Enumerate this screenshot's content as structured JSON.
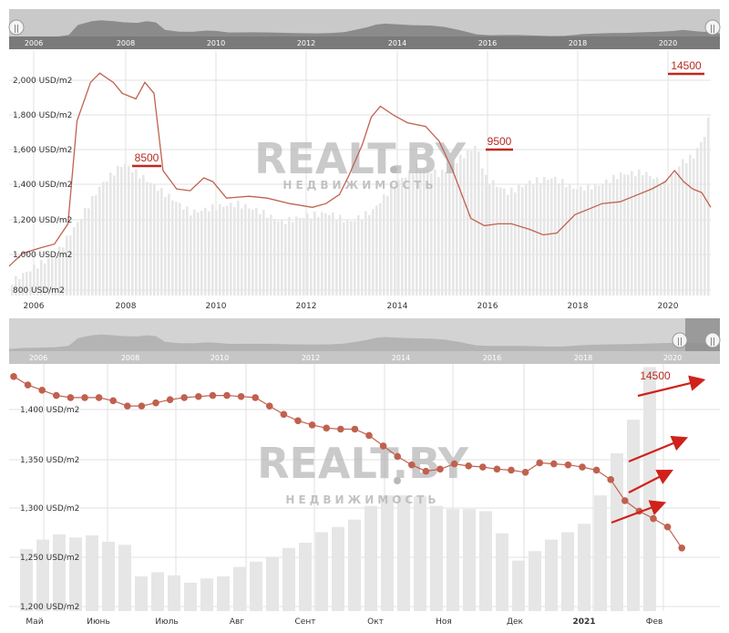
{
  "charts": [
    {
      "id": "top",
      "navigator": {
        "labels": [
          "2006",
          "2008",
          "2010",
          "2012",
          "2014",
          "2016",
          "2018",
          "2020"
        ],
        "handle_glyph": "||"
      },
      "chart_data": {
        "type": "line",
        "y_unit": "USD/m2",
        "y_ticks": [
          "2,000 USD/m2",
          "1,800 USD/m2",
          "1,600 USD/m2",
          "1,400 USD/m2",
          "1,200 USD/m2",
          "1,000 USD/m2",
          "800 USD/m2"
        ],
        "ylim": [
          800,
          2130
        ],
        "x_ticks": [
          "2006",
          "2008",
          "2010",
          "2012",
          "2014",
          "2016",
          "2018",
          "2020"
        ],
        "xlim": [
          2005.5,
          2021
        ],
        "grid": true,
        "watermark": {
          "main": "REALT.BY",
          "sub": "НЕДВИЖИМОСТЬ"
        },
        "series": [
          {
            "kind": "line",
            "color": "#c0614f",
            "points": [
              [
                2005.5,
                960
              ],
              [
                2005.8,
                1030
              ],
              [
                2006.2,
                1060
              ],
              [
                2006.5,
                1080
              ],
              [
                2006.8,
                1190
              ],
              [
                2007.0,
                1750
              ],
              [
                2007.3,
                1960
              ],
              [
                2007.5,
                2010
              ],
              [
                2007.8,
                1960
              ],
              [
                2008.0,
                1900
              ],
              [
                2008.3,
                1870
              ],
              [
                2008.5,
                1960
              ],
              [
                2008.7,
                1900
              ],
              [
                2008.9,
                1480
              ],
              [
                2009.2,
                1380
              ],
              [
                2009.5,
                1370
              ],
              [
                2009.8,
                1440
              ],
              [
                2010.0,
                1420
              ],
              [
                2010.3,
                1330
              ],
              [
                2010.8,
                1340
              ],
              [
                2011.2,
                1330
              ],
              [
                2011.7,
                1300
              ],
              [
                2012.2,
                1280
              ],
              [
                2012.5,
                1300
              ],
              [
                2012.8,
                1350
              ],
              [
                2013.0,
                1450
              ],
              [
                2013.3,
                1620
              ],
              [
                2013.5,
                1770
              ],
              [
                2013.7,
                1830
              ],
              [
                2014.0,
                1780
              ],
              [
                2014.3,
                1740
              ],
              [
                2014.7,
                1720
              ],
              [
                2015.0,
                1640
              ],
              [
                2015.3,
                1480
              ],
              [
                2015.7,
                1220
              ],
              [
                2016.0,
                1180
              ],
              [
                2016.3,
                1190
              ],
              [
                2016.6,
                1190
              ],
              [
                2017.0,
                1160
              ],
              [
                2017.3,
                1130
              ],
              [
                2017.6,
                1140
              ],
              [
                2018.0,
                1240
              ],
              [
                2018.3,
                1270
              ],
              [
                2018.6,
                1300
              ],
              [
                2019.0,
                1310
              ],
              [
                2019.3,
                1340
              ],
              [
                2019.7,
                1380
              ],
              [
                2020.0,
                1420
              ],
              [
                2020.2,
                1480
              ],
              [
                2020.4,
                1420
              ],
              [
                2020.6,
                1380
              ],
              [
                2020.8,
                1360
              ],
              [
                2021.0,
                1280
              ]
            ]
          },
          {
            "kind": "volume",
            "color": "#e6e6e6",
            "points": [
              [
                2005.5,
                870
              ],
              [
                2006.0,
                950
              ],
              [
                2006.5,
                1020
              ],
              [
                2007.0,
                1200
              ],
              [
                2007.5,
                1400
              ],
              [
                2008.0,
                1520
              ],
              [
                2008.5,
                1430
              ],
              [
                2009.0,
                1340
              ],
              [
                2009.5,
                1250
              ],
              [
                2010.0,
                1280
              ],
              [
                2010.5,
                1300
              ],
              [
                2011.0,
                1260
              ],
              [
                2011.5,
                1200
              ],
              [
                2012.0,
                1230
              ],
              [
                2012.5,
                1250
              ],
              [
                2013.0,
                1200
              ],
              [
                2013.5,
                1260
              ],
              [
                2014.0,
                1410
              ],
              [
                2014.5,
                1500
              ],
              [
                2015.0,
                1460
              ],
              [
                2015.5,
                1560
              ],
              [
                2015.8,
                1620
              ],
              [
                2016.0,
                1440
              ],
              [
                2016.5,
                1360
              ],
              [
                2017.0,
                1420
              ],
              [
                2017.5,
                1440
              ],
              [
                2018.0,
                1380
              ],
              [
                2018.5,
                1400
              ],
              [
                2019.0,
                1460
              ],
              [
                2019.5,
                1470
              ],
              [
                2020.0,
                1400
              ],
              [
                2020.3,
                1520
              ],
              [
                2020.6,
                1560
              ],
              [
                2020.9,
                1700
              ],
              [
                2021.0,
                1980
              ]
            ]
          }
        ],
        "annotations": [
          {
            "text": "8500",
            "x": 2008.5,
            "y": 1620
          },
          {
            "text": "9500",
            "x": 2016.2,
            "y": 1665
          },
          {
            "text": "14500",
            "x": 2020.7,
            "y": 2080
          }
        ]
      }
    },
    {
      "id": "bottom",
      "navigator": {
        "labels": [
          "2006",
          "2008",
          "2010",
          "2012",
          "2014",
          "2016",
          "2018",
          "2020"
        ],
        "handle_glyph": "||"
      },
      "chart_data": {
        "type": "line",
        "y_unit": "USD/m2",
        "y_ticks": [
          "1,400 USD/m2",
          "1,350 USD/m2",
          "1,300 USD/m2",
          "1,250 USD/m2",
          "1,200 USD/m2"
        ],
        "ylim": [
          1195,
          1430
        ],
        "x_ticks": [
          "Май",
          "Июнь",
          "Июль",
          "Авг",
          "Сент",
          "Окт",
          "Ноя",
          "Дек",
          "2021",
          "Фев"
        ],
        "grid": true,
        "watermark": {
          "main": "REALT.BY",
          "sub": "НЕДВИЖИМОСТЬ"
        },
        "series": [
          {
            "kind": "line",
            "color": "#c0614f",
            "values": [
              1418,
              1410,
              1405,
              1400,
              1398,
              1398,
              1398,
              1395,
              1390,
              1390,
              1393,
              1396,
              1398,
              1399,
              1400,
              1400,
              1399,
              1398,
              1390,
              1382,
              1376,
              1372,
              1369,
              1368,
              1368,
              1362,
              1352,
              1342,
              1334,
              1328,
              1330,
              1335,
              1333,
              1332,
              1330,
              1329,
              1327,
              1336,
              1335,
              1334,
              1332,
              1329,
              1320,
              1300,
              1290,
              1283,
              1275,
              1255
            ]
          },
          {
            "kind": "volume",
            "color": "#e6e6e6",
            "values": [
              1254,
              1263,
              1268,
              1265,
              1267,
              1261,
              1258,
              1228,
              1232,
              1229,
              1222,
              1226,
              1228,
              1237,
              1242,
              1246,
              1255,
              1260,
              1270,
              1275,
              1282,
              1295,
              1305,
              1305,
              1304,
              1295,
              1292,
              1292,
              1290,
              1269,
              1243,
              1252,
              1263,
              1270,
              1278,
              1305,
              1345,
              1377,
              1427
            ]
          }
        ],
        "annotations": [
          {
            "text": "14500",
            "x_index": 44,
            "y": 1418
          }
        ]
      }
    }
  ]
}
